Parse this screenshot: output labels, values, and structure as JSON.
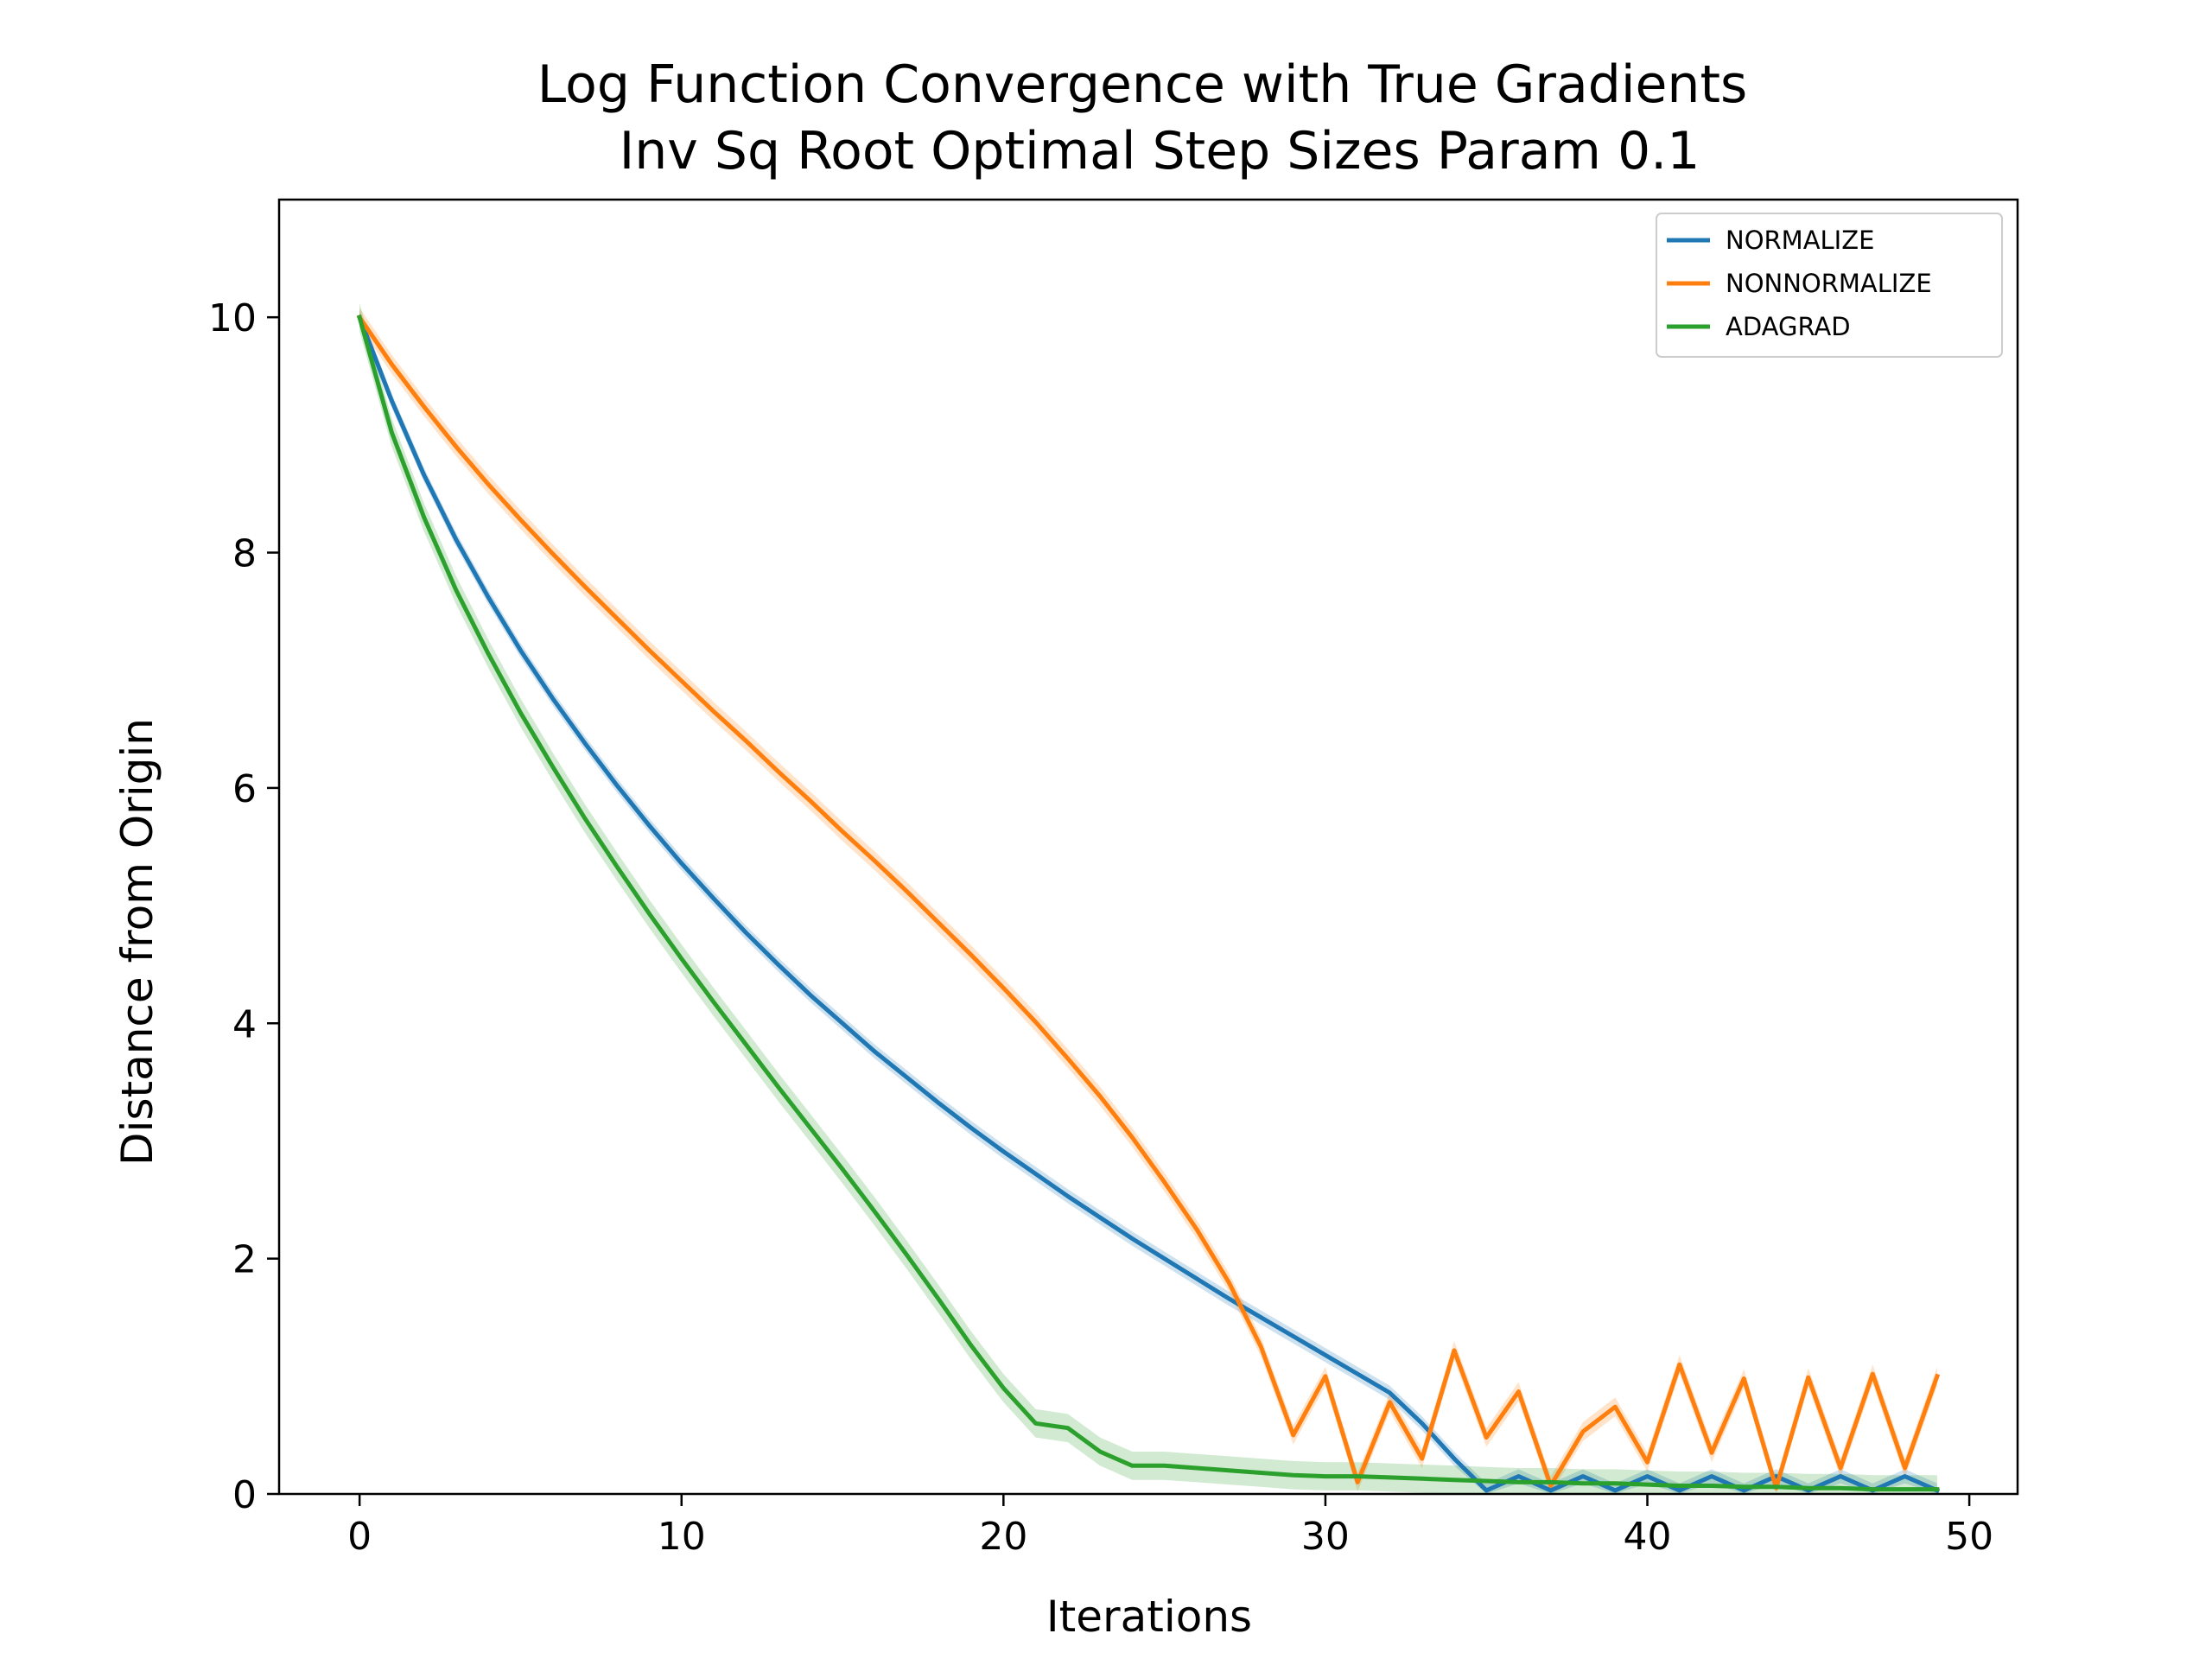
{
  "chart_data": {
    "type": "line",
    "title": "Log Function Convergence with True Gradients",
    "subtitle": "Inv Sq Root Optimal Step Sizes Param 0.1",
    "xlabel": "Iterations",
    "ylabel": "Distance from Origin",
    "xlim": [
      -2.5,
      51.5
    ],
    "ylim": [
      0,
      11
    ],
    "xticks": [
      0,
      10,
      20,
      30,
      40,
      50
    ],
    "yticks": [
      0,
      2,
      4,
      6,
      8,
      10
    ],
    "grid": false,
    "legend_position": "top-right",
    "x": [
      0,
      1,
      2,
      3,
      4,
      5,
      6,
      7,
      8,
      9,
      10,
      11,
      12,
      13,
      14,
      15,
      16,
      17,
      18,
      19,
      20,
      21,
      22,
      23,
      24,
      25,
      26,
      27,
      28,
      29,
      30,
      31,
      32,
      33,
      34,
      35,
      36,
      37,
      38,
      39,
      40,
      41,
      42,
      43,
      44,
      45,
      46,
      47,
      48,
      49
    ],
    "series": [
      {
        "name": "NORMALIZE",
        "color": "#1f77b4",
        "band": 0.06,
        "values": [
          10.0,
          9.29,
          8.66,
          8.11,
          7.62,
          7.17,
          6.76,
          6.38,
          6.02,
          5.68,
          5.36,
          5.06,
          4.77,
          4.5,
          4.24,
          4.0,
          3.76,
          3.54,
          3.32,
          3.11,
          2.91,
          2.72,
          2.53,
          2.35,
          2.17,
          2.0,
          1.83,
          1.66,
          1.5,
          1.34,
          1.18,
          1.02,
          0.86,
          0.6,
          0.3,
          0.03,
          0.15,
          0.03,
          0.15,
          0.03,
          0.15,
          0.03,
          0.15,
          0.03,
          0.15,
          0.03,
          0.15,
          0.03,
          0.15,
          0.03
        ]
      },
      {
        "name": "NONNORMALIZE",
        "color": "#ff7f0e",
        "band": 0.08,
        "values": [
          10.0,
          9.6,
          9.24,
          8.9,
          8.58,
          8.28,
          7.99,
          7.71,
          7.44,
          7.17,
          6.91,
          6.65,
          6.4,
          6.14,
          5.89,
          5.63,
          5.38,
          5.12,
          4.85,
          4.58,
          4.3,
          4.01,
          3.7,
          3.38,
          3.03,
          2.65,
          2.25,
          1.8,
          1.25,
          0.5,
          1.0,
          0.1,
          0.78,
          0.3,
          1.22,
          0.48,
          0.87,
          0.07,
          0.53,
          0.74,
          0.27,
          1.1,
          0.35,
          0.98,
          0.05,
          0.99,
          0.22,
          1.02,
          0.22,
          1.0
        ]
      },
      {
        "name": "ADAGRAD",
        "color": "#2ca02c",
        "band": 0.12,
        "values": [
          10.0,
          9.02,
          8.3,
          7.68,
          7.14,
          6.64,
          6.18,
          5.74,
          5.33,
          4.93,
          4.55,
          4.18,
          3.82,
          3.46,
          3.11,
          2.76,
          2.4,
          2.03,
          1.65,
          1.26,
          0.9,
          0.6,
          0.56,
          0.36,
          0.24,
          0.24,
          0.22,
          0.2,
          0.18,
          0.16,
          0.15,
          0.15,
          0.14,
          0.13,
          0.12,
          0.11,
          0.1,
          0.1,
          0.09,
          0.09,
          0.08,
          0.07,
          0.07,
          0.06,
          0.06,
          0.05,
          0.05,
          0.04,
          0.04,
          0.04
        ]
      }
    ]
  }
}
